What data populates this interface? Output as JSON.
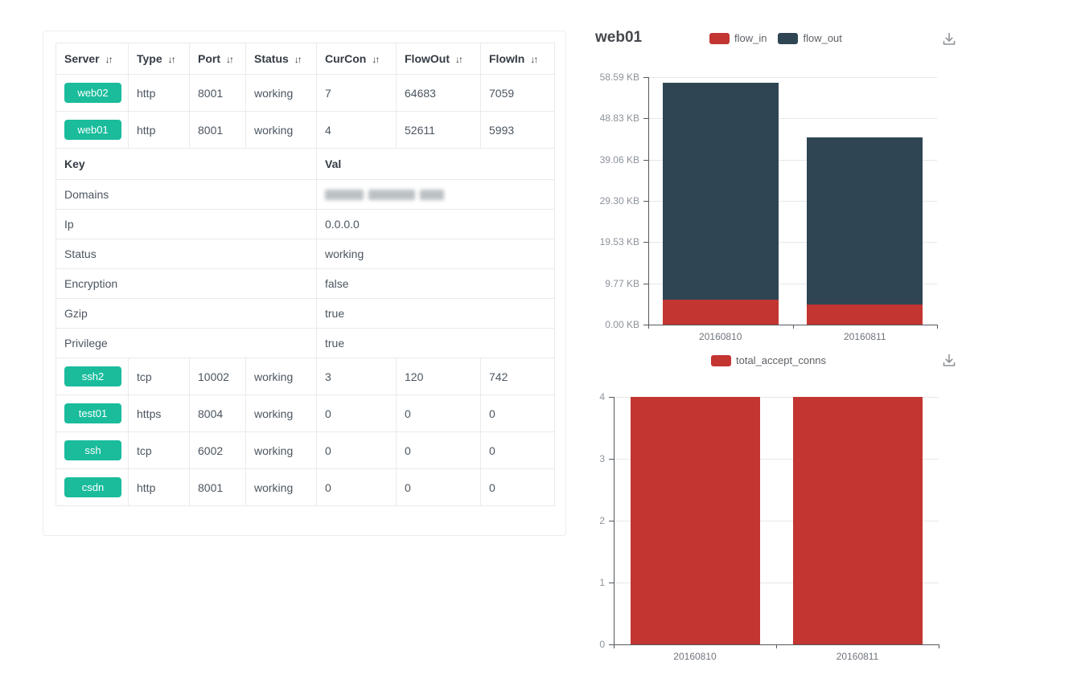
{
  "colors": {
    "badge_green": "#1abc9c",
    "flow_in_red": "#c23531",
    "flow_out_dark": "#2f4554",
    "table_border": "#e7eaec"
  },
  "server_table": {
    "columns": [
      {
        "label": "Server",
        "sortable": true
      },
      {
        "label": "Type",
        "sortable": true
      },
      {
        "label": "Port",
        "sortable": true
      },
      {
        "label": "Status",
        "sortable": true
      },
      {
        "label": "CurCon",
        "sortable": true
      },
      {
        "label": "FlowOut",
        "sortable": true
      },
      {
        "label": "FlowIn",
        "sortable": true
      }
    ],
    "rows_top": [
      {
        "server": "web02",
        "type": "http",
        "port": "8001",
        "status": "working",
        "curcon": "7",
        "flowout": "64683",
        "flowin": "7059"
      },
      {
        "server": "web01",
        "type": "http",
        "port": "8001",
        "status": "working",
        "curcon": "4",
        "flowout": "52611",
        "flowin": "5993"
      }
    ],
    "kv_header": {
      "key": "Key",
      "val": "Val"
    },
    "kv_rows": [
      {
        "key": "Domains",
        "val": "",
        "redacted": true
      },
      {
        "key": "Ip",
        "val": "0.0.0.0"
      },
      {
        "key": "Status",
        "val": "working"
      },
      {
        "key": "Encryption",
        "val": "false"
      },
      {
        "key": "Gzip",
        "val": "true"
      },
      {
        "key": "Privilege",
        "val": "true"
      }
    ],
    "rows_bottom": [
      {
        "server": "ssh2",
        "type": "tcp",
        "port": "10002",
        "status": "working",
        "curcon": "3",
        "flowout": "120",
        "flowin": "742"
      },
      {
        "server": "test01",
        "type": "https",
        "port": "8004",
        "status": "working",
        "curcon": "0",
        "flowout": "0",
        "flowin": "0"
      },
      {
        "server": "ssh",
        "type": "tcp",
        "port": "6002",
        "status": "working",
        "curcon": "0",
        "flowout": "0",
        "flowin": "0"
      },
      {
        "server": "csdn",
        "type": "http",
        "port": "8001",
        "status": "working",
        "curcon": "0",
        "flowout": "0",
        "flowin": "0"
      }
    ]
  },
  "charts_panel": {
    "title": "web01",
    "flow_legend": [
      {
        "label": "flow_in",
        "color": "#c23531"
      },
      {
        "label": "flow_out",
        "color": "#2f4554"
      }
    ],
    "conns_legend": [
      {
        "label": "total_accept_conns",
        "color": "#c23531"
      }
    ]
  },
  "chart_data": [
    {
      "type": "bar",
      "stacked": true,
      "title": "web01 flow_in / flow_out by day",
      "categories": [
        "20160810",
        "20160811"
      ],
      "series": [
        {
          "name": "flow_in",
          "color": "#c23531",
          "values_kb": [
            5.85,
            4.75
          ]
        },
        {
          "name": "flow_out",
          "color": "#2f4554",
          "values_kb": [
            51.38,
            39.55
          ]
        }
      ],
      "ylabel": "KB",
      "ylim": [
        0,
        58.59
      ],
      "yticks": [
        "58.59 KB",
        "48.83 KB",
        "39.06 KB",
        "29.30 KB",
        "19.53 KB",
        "9.77 KB",
        "0.00 KB"
      ],
      "legend_position": "top",
      "grid": true
    },
    {
      "type": "bar",
      "stacked": false,
      "title": "web01 total_accept_conns by day",
      "categories": [
        "20160810",
        "20160811"
      ],
      "series": [
        {
          "name": "total_accept_conns",
          "color": "#c23531",
          "values": [
            4,
            4
          ]
        }
      ],
      "ylim": [
        0,
        4
      ],
      "yticks": [
        "4",
        "3",
        "2",
        "1",
        "0"
      ],
      "legend_position": "top",
      "grid": true
    }
  ]
}
